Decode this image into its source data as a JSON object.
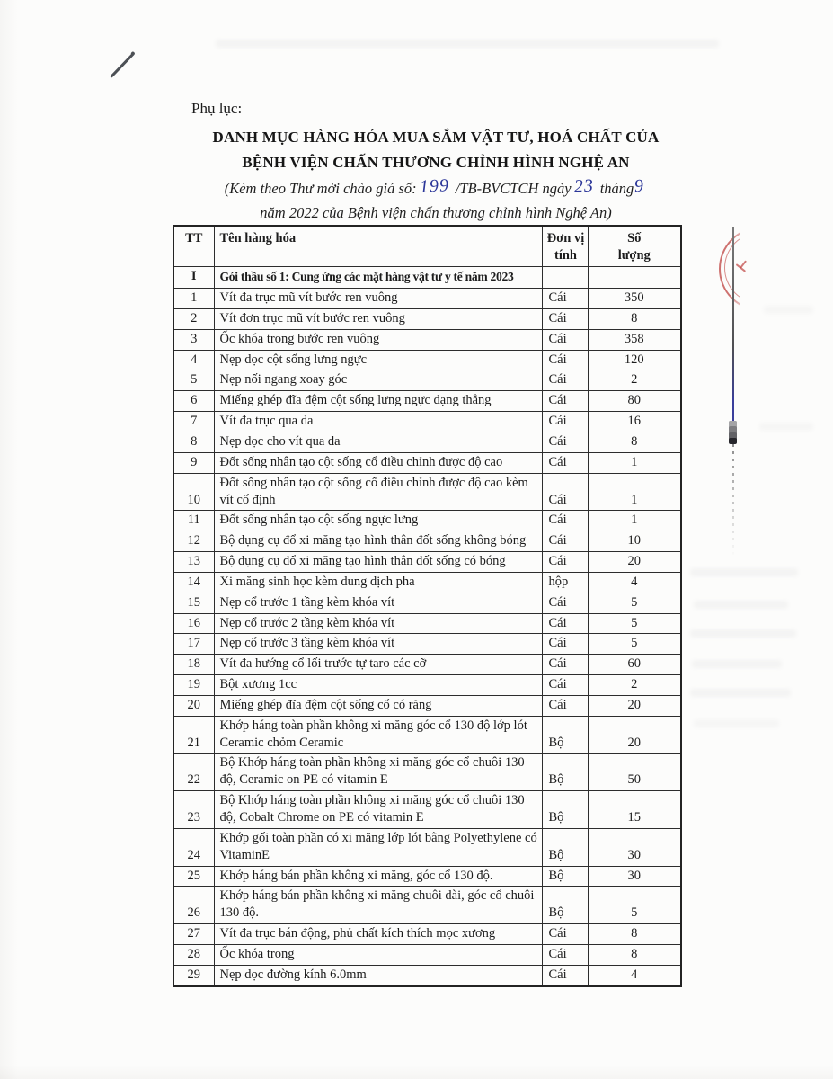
{
  "doc": {
    "appendix_label": "Phụ lục:",
    "title_line1": "DANH MỤC HÀNG HÓA MUA SẮM VẬT TƯ, HOÁ CHẤT CỦA",
    "title_line2": "BỆNH VIỆN CHẤN THƯƠNG CHỈNH HÌNH NGHỆ AN",
    "subtitle_pre": "(Kèm theo Thư mời chào giá số:",
    "doc_number": "199",
    "subtitle_mid": "/TB-BVCTCH ngày",
    "day": "23",
    "subtitle_thang": "tháng",
    "month": "9",
    "subtitle_line2": "năm 2022 của Bệnh viện chấn thương chỉnh hình Nghệ An)"
  },
  "table": {
    "headers": {
      "tt": "TT",
      "name": "Tên hàng hóa",
      "unit": "Đơn vị tính",
      "qty": "Số lượng"
    },
    "section": {
      "tt": "I",
      "name": "Gói thầu số 1: Cung ứng các mặt hàng vật tư y tế năm 2023"
    },
    "rows": [
      {
        "tt": "1",
        "name": "Vít đa trục mũ vít bước ren vuông",
        "unit": "Cái",
        "qty": "350"
      },
      {
        "tt": "2",
        "name": "Vít đơn trục mũ vít bước ren vuông",
        "unit": "Cái",
        "qty": "8"
      },
      {
        "tt": "3",
        "name": "Ốc khóa trong bước ren vuông",
        "unit": "Cái",
        "qty": "358"
      },
      {
        "tt": "4",
        "name": "Nẹp dọc cột sống lưng ngực",
        "unit": "Cái",
        "qty": "120"
      },
      {
        "tt": "5",
        "name": "Nẹp nối ngang xoay góc",
        "unit": "Cái",
        "qty": "2"
      },
      {
        "tt": "6",
        "name": "Miếng ghép đĩa đệm cột sống lưng ngực dạng thẳng",
        "unit": "Cái",
        "qty": "80"
      },
      {
        "tt": "7",
        "name": "Vít đa trục qua da",
        "unit": "Cái",
        "qty": "16"
      },
      {
        "tt": "8",
        "name": "Nẹp dọc cho vít qua da",
        "unit": "Cái",
        "qty": "8"
      },
      {
        "tt": "9",
        "name": "Đốt sống nhân tạo cột sống cổ điều chỉnh được độ cao",
        "unit": "Cái",
        "qty": "1"
      },
      {
        "tt": "10",
        "name": "Đốt sống nhân tạo cột sống cổ điều chỉnh được độ cao kèm vít cố định",
        "unit": "Cái",
        "qty": "1"
      },
      {
        "tt": "11",
        "name": "Đốt sống nhân tạo cột sống ngực lưng",
        "unit": "Cái",
        "qty": "1"
      },
      {
        "tt": "12",
        "name": "Bộ dụng cụ đổ xi măng tạo hình thân đốt sống không bóng",
        "unit": "Cái",
        "qty": "10"
      },
      {
        "tt": "13",
        "name": "Bộ dụng cụ đổ xi măng tạo hình thân đốt sống có bóng",
        "unit": "Cái",
        "qty": "20"
      },
      {
        "tt": "14",
        "name": "Xi măng sinh học kèm dung dịch pha",
        "unit": "hộp",
        "qty": "4"
      },
      {
        "tt": "15",
        "name": "Nẹp cổ trước 1 tầng kèm khóa vít",
        "unit": "Cái",
        "qty": "5"
      },
      {
        "tt": "16",
        "name": "Nẹp cổ trước 2 tầng kèm khóa vít",
        "unit": "Cái",
        "qty": "5"
      },
      {
        "tt": "17",
        "name": "Nẹp cổ trước 3 tầng kèm khóa vít",
        "unit": "Cái",
        "qty": "5"
      },
      {
        "tt": "18",
        "name": "Vít đa hướng cổ lối trước tự taro các cỡ",
        "unit": "Cái",
        "qty": "60"
      },
      {
        "tt": "19",
        "name": "Bột xương 1cc",
        "unit": "Cái",
        "qty": "2"
      },
      {
        "tt": "20",
        "name": "Miếng ghép đĩa đệm cột sống cổ có răng",
        "unit": "Cái",
        "qty": "20"
      },
      {
        "tt": "21",
        "name": "Khớp háng toàn phần không xi măng góc cổ 130 độ lớp lót Ceramic chỏm Ceramic",
        "unit": "Bộ",
        "qty": "20"
      },
      {
        "tt": "22",
        "name": "Bộ Khớp háng toàn phần không xi măng góc cổ chuôi 130 độ, Ceramic on PE có vitamin E",
        "unit": "Bộ",
        "qty": "50"
      },
      {
        "tt": "23",
        "name": "Bộ Khớp háng toàn phần không xi măng góc cổ chuôi 130 độ, Cobalt Chrome on PE có vitamin E",
        "unit": "Bộ",
        "qty": "15"
      },
      {
        "tt": "24",
        "name": "Khớp gối toàn phần có xi măng lớp lót bằng Polyethylene có VitaminE",
        "unit": "Bộ",
        "qty": "30"
      },
      {
        "tt": "25",
        "name": "Khớp háng bán phần không xi măng, góc cổ 130 độ.",
        "unit": "Bộ",
        "qty": "30"
      },
      {
        "tt": "26",
        "name": "Khớp háng bán phần không xi măng chuôi dài, góc cổ chuôi 130 độ.",
        "unit": "Bộ",
        "qty": "5"
      },
      {
        "tt": "27",
        "name": "Vít đa trục bán động, phủ chất kích thích mọc xương",
        "unit": "Cái",
        "qty": "8"
      },
      {
        "tt": "28",
        "name": "Ốc khóa trong",
        "unit": "Cái",
        "qty": "8"
      },
      {
        "tt": "29",
        "name": "Nẹp dọc đường kính 6.0mm",
        "unit": "Cái",
        "qty": "4"
      }
    ]
  },
  "colors": {
    "handwriting_ink": "#2b3699",
    "stamp_red": "#bf4340"
  }
}
